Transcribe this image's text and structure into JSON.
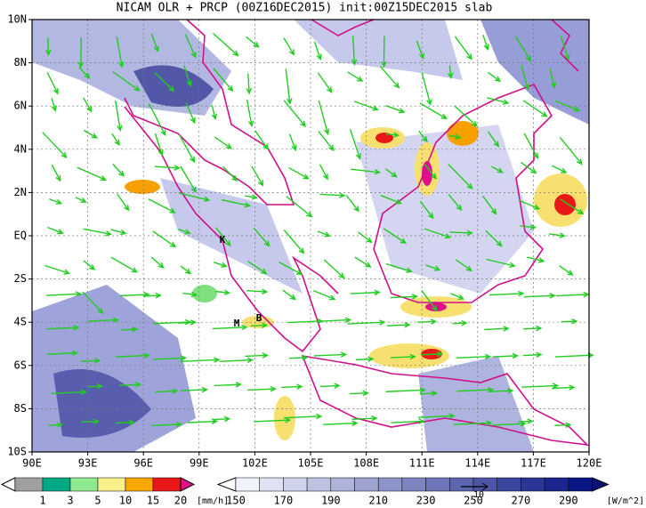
{
  "title": "NICAM OLR + PRCP (00Z16DEC2015) init:00Z15DEC2015 slab",
  "lat_labels": [
    "10N",
    "8N",
    "6N",
    "4N",
    "2N",
    "EQ",
    "2S",
    "4S",
    "6S",
    "8S",
    "10S"
  ],
  "lon_labels": [
    "90E",
    "93E",
    "96E",
    "99E",
    "102E",
    "105E",
    "108E",
    "111E",
    "114E",
    "117E",
    "120E"
  ],
  "site_labels": [
    "K",
    "M",
    "B"
  ],
  "precip_colorbar": {
    "labels": [
      "1",
      "3",
      "5",
      "10",
      "15",
      "20"
    ],
    "unit": "[mm/h]"
  },
  "olr_colorbar": {
    "labels": [
      "150",
      "170",
      "190",
      "210",
      "230",
      "250",
      "270",
      "290"
    ],
    "unit": "[W/m^2]"
  },
  "vector_reference": "10"
}
